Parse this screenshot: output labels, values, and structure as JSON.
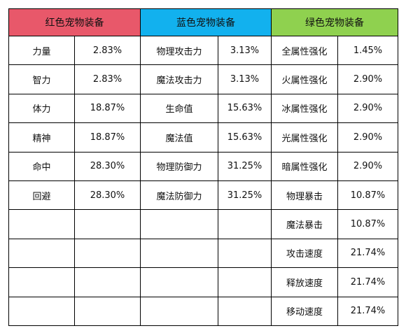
{
  "headers": {
    "red": "红色宠物装备",
    "blue": "蓝色宠物装备",
    "green": "绿色宠物装备"
  },
  "colors": {
    "red": "#e8586a",
    "blue": "#12b1ee",
    "green": "#8fd14f"
  },
  "red": [
    {
      "name": "力量",
      "value": "2.83%"
    },
    {
      "name": "智力",
      "value": "2.83%"
    },
    {
      "name": "体力",
      "value": "18.87%"
    },
    {
      "name": "精神",
      "value": "18.87%"
    },
    {
      "name": "命中",
      "value": "28.30%"
    },
    {
      "name": "回避",
      "value": "28.30%"
    }
  ],
  "blue": [
    {
      "name": "物理攻击力",
      "value": "3.13%"
    },
    {
      "name": "魔法攻击力",
      "value": "3.13%"
    },
    {
      "name": "生命值",
      "value": "15.63%"
    },
    {
      "name": "魔法值",
      "value": "15.63%"
    },
    {
      "name": "物理防御力",
      "value": "31.25%"
    },
    {
      "name": "魔法防御力",
      "value": "31.25%"
    }
  ],
  "green": [
    {
      "name": "全属性强化",
      "value": "1.45%"
    },
    {
      "name": "火属性强化",
      "value": "2.90%"
    },
    {
      "name": "冰属性强化",
      "value": "2.90%"
    },
    {
      "name": "光属性强化",
      "value": "2.90%"
    },
    {
      "name": "暗属性强化",
      "value": "2.90%"
    },
    {
      "name": "物理暴击",
      "value": "10.87%"
    },
    {
      "name": "魔法暴击",
      "value": "10.87%"
    },
    {
      "name": "攻击速度",
      "value": "21.74%"
    },
    {
      "name": "释放速度",
      "value": "21.74%"
    },
    {
      "name": "移动速度",
      "value": "21.74%"
    }
  ]
}
